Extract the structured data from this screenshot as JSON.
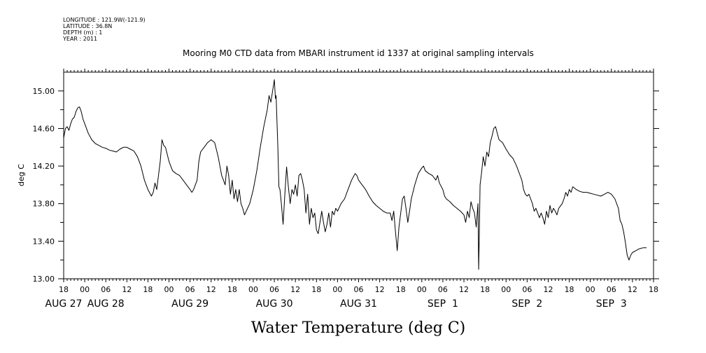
{
  "metadata": {
    "lines": [
      "LONGITUDE : 121.9W(-121.9)",
      "LATITUDE : 36.8N",
      "DEPTH (m) : 1",
      "YEAR : 2011"
    ]
  },
  "chart_data": {
    "type": "line",
    "title": "Mooring M0 CTD data from MBARI instrument id 1337 at original sampling intervals",
    "xlabel": "Water Temperature (deg C)",
    "ylabel": "deg C",
    "ylim": [
      13.0,
      15.2
    ],
    "yticks": [
      "13.00",
      "13.40",
      "13.80",
      "14.20",
      "14.60",
      "15.00"
    ],
    "ytick_values": [
      13.0,
      13.4,
      13.8,
      14.2,
      14.6,
      15.0
    ],
    "xlim_hours": [
      0,
      168
    ],
    "hour_ticks": [
      "18",
      "00",
      "06",
      "12",
      "18",
      "00",
      "06",
      "12",
      "18",
      "00",
      "06",
      "12",
      "18",
      "00",
      "06",
      "12",
      "18",
      "00",
      "06",
      "12",
      "18",
      "00",
      "06",
      "12",
      "18",
      "00",
      "06",
      "12",
      "18"
    ],
    "day_labels": [
      {
        "label": "AUG 27",
        "hour": 0
      },
      {
        "label": "AUG 28",
        "hour": 12
      },
      {
        "label": "AUG 29",
        "hour": 36
      },
      {
        "label": "AUG 30",
        "hour": 60
      },
      {
        "label": "AUG 31",
        "hour": 84
      },
      {
        "label": "SEP  1",
        "hour": 108
      },
      {
        "label": "SEP  2",
        "hour": 132
      },
      {
        "label": "SEP  3",
        "hour": 156
      }
    ],
    "grid": false,
    "series": [
      {
        "points": [
          [
            0,
            14.5
          ],
          [
            0.5,
            14.6
          ],
          [
            1,
            14.62
          ],
          [
            1.5,
            14.58
          ],
          [
            2,
            14.65
          ],
          [
            2.5,
            14.7
          ],
          [
            3,
            14.72
          ],
          [
            3.5,
            14.78
          ],
          [
            4,
            14.82
          ],
          [
            4.5,
            14.83
          ],
          [
            5,
            14.78
          ],
          [
            5.5,
            14.7
          ],
          [
            6,
            14.65
          ],
          [
            7,
            14.55
          ],
          [
            8,
            14.48
          ],
          [
            9,
            14.44
          ],
          [
            10,
            14.42
          ],
          [
            11,
            14.4
          ],
          [
            12,
            14.39
          ],
          [
            13,
            14.37
          ],
          [
            14,
            14.36
          ],
          [
            15,
            14.35
          ],
          [
            16,
            14.38
          ],
          [
            17,
            14.4
          ],
          [
            18,
            14.4
          ],
          [
            19,
            14.38
          ],
          [
            20,
            14.36
          ],
          [
            21,
            14.3
          ],
          [
            22,
            14.2
          ],
          [
            23,
            14.05
          ],
          [
            24,
            13.95
          ],
          [
            25,
            13.88
          ],
          [
            25.5,
            13.92
          ],
          [
            26,
            14.02
          ],
          [
            26.5,
            13.95
          ],
          [
            27,
            14.1
          ],
          [
            27.5,
            14.25
          ],
          [
            28,
            14.48
          ],
          [
            28.5,
            14.42
          ],
          [
            29,
            14.4
          ],
          [
            30,
            14.25
          ],
          [
            31,
            14.15
          ],
          [
            32,
            14.12
          ],
          [
            33,
            14.1
          ],
          [
            34,
            14.05
          ],
          [
            35,
            14.0
          ],
          [
            36,
            13.95
          ],
          [
            36.5,
            13.92
          ],
          [
            37,
            13.95
          ],
          [
            38,
            14.05
          ],
          [
            38.5,
            14.25
          ],
          [
            39,
            14.35
          ],
          [
            40,
            14.4
          ],
          [
            41,
            14.45
          ],
          [
            42,
            14.48
          ],
          [
            43,
            14.45
          ],
          [
            44,
            14.3
          ],
          [
            45,
            14.1
          ],
          [
            45.5,
            14.05
          ],
          [
            46,
            14.0
          ],
          [
            46.5,
            14.2
          ],
          [
            47,
            14.1
          ],
          [
            47.5,
            13.9
          ],
          [
            48,
            14.05
          ],
          [
            48.5,
            13.85
          ],
          [
            49,
            13.95
          ],
          [
            49.5,
            13.82
          ],
          [
            50,
            13.95
          ],
          [
            50.5,
            13.8
          ],
          [
            51,
            13.75
          ],
          [
            51.5,
            13.68
          ],
          [
            52,
            13.72
          ],
          [
            53,
            13.8
          ],
          [
            54,
            13.95
          ],
          [
            55,
            14.15
          ],
          [
            56,
            14.4
          ],
          [
            57,
            14.62
          ],
          [
            58,
            14.8
          ],
          [
            58.5,
            14.95
          ],
          [
            59,
            14.88
          ],
          [
            59.5,
            15.0
          ],
          [
            60,
            15.12
          ],
          [
            60.3,
            14.92
          ],
          [
            60.5,
            14.95
          ],
          [
            61,
            14.4
          ],
          [
            61.3,
            13.98
          ],
          [
            61.6,
            13.95
          ],
          [
            62,
            13.8
          ],
          [
            62.5,
            13.58
          ],
          [
            63,
            13.9
          ],
          [
            63.5,
            14.19
          ],
          [
            64,
            13.98
          ],
          [
            64.5,
            13.8
          ],
          [
            65,
            13.95
          ],
          [
            65.5,
            13.9
          ],
          [
            66,
            14.0
          ],
          [
            66.5,
            13.88
          ],
          [
            67,
            14.1
          ],
          [
            67.5,
            14.12
          ],
          [
            68,
            14.05
          ],
          [
            68.5,
            13.95
          ],
          [
            69,
            13.7
          ],
          [
            69.5,
            13.9
          ],
          [
            70,
            13.58
          ],
          [
            70.5,
            13.75
          ],
          [
            71,
            13.65
          ],
          [
            71.5,
            13.7
          ],
          [
            72,
            13.52
          ],
          [
            72.5,
            13.48
          ],
          [
            73,
            13.6
          ],
          [
            73.5,
            13.72
          ],
          [
            74,
            13.6
          ],
          [
            74.5,
            13.5
          ],
          [
            75,
            13.58
          ],
          [
            75.5,
            13.7
          ],
          [
            76,
            13.55
          ],
          [
            76.5,
            13.72
          ],
          [
            77,
            13.68
          ],
          [
            77.5,
            13.75
          ],
          [
            78,
            13.72
          ],
          [
            79,
            13.8
          ],
          [
            80,
            13.85
          ],
          [
            81,
            13.95
          ],
          [
            82,
            14.05
          ],
          [
            83,
            14.12
          ],
          [
            83.5,
            14.1
          ],
          [
            84,
            14.05
          ],
          [
            85,
            14.0
          ],
          [
            86,
            13.95
          ],
          [
            87,
            13.88
          ],
          [
            88,
            13.82
          ],
          [
            89,
            13.78
          ],
          [
            90,
            13.75
          ],
          [
            91,
            13.72
          ],
          [
            92,
            13.7
          ],
          [
            93,
            13.7
          ],
          [
            93.5,
            13.62
          ],
          [
            94,
            13.72
          ],
          [
            94.5,
            13.5
          ],
          [
            95,
            13.3
          ],
          [
            95.5,
            13.55
          ],
          [
            96,
            13.7
          ],
          [
            96.5,
            13.85
          ],
          [
            97,
            13.88
          ],
          [
            97.5,
            13.75
          ],
          [
            98,
            13.6
          ],
          [
            98.5,
            13.72
          ],
          [
            99,
            13.85
          ],
          [
            100,
            14.0
          ],
          [
            101,
            14.12
          ],
          [
            102,
            14.18
          ],
          [
            102.5,
            14.2
          ],
          [
            103,
            14.15
          ],
          [
            104,
            14.12
          ],
          [
            105,
            14.1
          ],
          [
            106,
            14.05
          ],
          [
            106.5,
            14.1
          ],
          [
            107,
            14.02
          ],
          [
            108,
            13.95
          ],
          [
            108.5,
            13.88
          ],
          [
            109,
            13.85
          ],
          [
            110,
            13.82
          ],
          [
            111,
            13.78
          ],
          [
            112,
            13.75
          ],
          [
            113,
            13.72
          ],
          [
            114,
            13.68
          ],
          [
            114.5,
            13.6
          ],
          [
            115,
            13.72
          ],
          [
            115.5,
            13.65
          ],
          [
            116,
            13.82
          ],
          [
            116.5,
            13.75
          ],
          [
            117,
            13.7
          ],
          [
            117.5,
            13.55
          ],
          [
            118,
            13.8
          ],
          [
            118.2,
            13.1
          ],
          [
            118.4,
            13.5
          ],
          [
            118.6,
            14.0
          ],
          [
            119,
            14.12
          ],
          [
            119.5,
            14.3
          ],
          [
            120,
            14.2
          ],
          [
            120.5,
            14.35
          ],
          [
            121,
            14.3
          ],
          [
            121.5,
            14.45
          ],
          [
            122,
            14.52
          ],
          [
            122.5,
            14.6
          ],
          [
            123,
            14.62
          ],
          [
            123.5,
            14.55
          ],
          [
            124,
            14.48
          ],
          [
            125,
            14.45
          ],
          [
            126,
            14.38
          ],
          [
            127,
            14.32
          ],
          [
            128,
            14.28
          ],
          [
            129,
            14.2
          ],
          [
            130,
            14.1
          ],
          [
            130.5,
            14.05
          ],
          [
            131,
            13.95
          ],
          [
            131.5,
            13.9
          ],
          [
            132,
            13.88
          ],
          [
            132.5,
            13.9
          ],
          [
            133,
            13.85
          ],
          [
            133.5,
            13.8
          ],
          [
            134,
            13.72
          ],
          [
            134.5,
            13.75
          ],
          [
            135,
            13.7
          ],
          [
            135.5,
            13.65
          ],
          [
            136,
            13.7
          ],
          [
            136.5,
            13.65
          ],
          [
            137,
            13.58
          ],
          [
            137.5,
            13.72
          ],
          [
            138,
            13.65
          ],
          [
            138.5,
            13.78
          ],
          [
            139,
            13.7
          ],
          [
            139.5,
            13.75
          ],
          [
            140,
            13.72
          ],
          [
            140.5,
            13.68
          ],
          [
            141,
            13.75
          ],
          [
            142,
            13.8
          ],
          [
            142.5,
            13.85
          ],
          [
            143,
            13.92
          ],
          [
            143.5,
            13.88
          ],
          [
            144,
            13.95
          ],
          [
            144.5,
            13.92
          ],
          [
            145,
            13.98
          ],
          [
            146,
            13.95
          ],
          [
            147,
            13.93
          ],
          [
            148,
            13.92
          ],
          [
            149,
            13.92
          ],
          [
            150,
            13.91
          ],
          [
            151,
            13.9
          ],
          [
            152,
            13.89
          ],
          [
            153,
            13.88
          ],
          [
            154,
            13.9
          ],
          [
            155,
            13.92
          ],
          [
            156,
            13.9
          ],
          [
            157,
            13.85
          ],
          [
            158,
            13.75
          ],
          [
            158.5,
            13.62
          ],
          [
            159,
            13.58
          ],
          [
            159.5,
            13.5
          ],
          [
            160,
            13.38
          ],
          [
            160.5,
            13.25
          ],
          [
            161,
            13.2
          ],
          [
            161.5,
            13.25
          ],
          [
            162,
            13.28
          ],
          [
            163,
            13.3
          ],
          [
            164,
            13.32
          ],
          [
            165,
            13.33
          ],
          [
            166,
            13.33
          ]
        ]
      }
    ]
  }
}
